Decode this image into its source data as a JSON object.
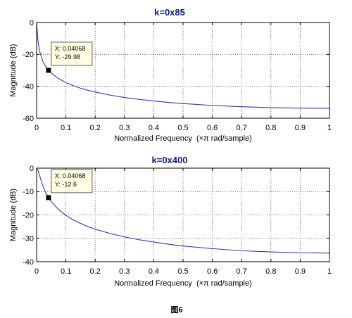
{
  "caption": "图6",
  "chart_data": [
    {
      "type": "line",
      "title": "k=0x85",
      "xlabel": "Normalized Frequency  (×π rad/sample)",
      "ylabel": "Magnitude (dB)",
      "xlim": [
        0,
        1
      ],
      "ylim": [
        -60,
        0
      ],
      "xticks": [
        0,
        0.1,
        0.2,
        0.3,
        0.4,
        0.5,
        0.6,
        0.7,
        0.8,
        0.9,
        1
      ],
      "xtick_labels": [
        "0",
        "0.1",
        "0.2",
        "0.3",
        "0.4",
        "0.5",
        "0.6",
        "0.7",
        "0.8",
        "0.9",
        "1"
      ],
      "yticks": [
        0,
        -20,
        -40,
        -60
      ],
      "ytick_labels": [
        "0",
        "-20",
        "-40",
        "-60"
      ],
      "grid": true,
      "grid_style": "dotted",
      "line_color": "#2b3aa6",
      "title_color": "#14207a",
      "datatip_color": "#ffffe1",
      "series": [
        {
          "x": [
            0,
            0.005,
            0.01,
            0.02,
            0.03,
            0.04068,
            0.05,
            0.075,
            0.1,
            0.125,
            0.15,
            0.175,
            0.2,
            0.25,
            0.3,
            0.35,
            0.4,
            0.45,
            0.5,
            0.6,
            0.7,
            0.8,
            0.9,
            1
          ],
          "y": [
            0,
            -12.0,
            -17.8,
            -23.8,
            -27.3,
            -29.98,
            -31.7,
            -35.2,
            -37.7,
            -39.6,
            -41.2,
            -42.5,
            -43.6,
            -45.5,
            -47.0,
            -48.2,
            -49.2,
            -50.1,
            -50.8,
            -52.0,
            -52.8,
            -53.4,
            -53.7,
            -53.8
          ]
        }
      ],
      "datatip": {
        "x": 0.04068,
        "y": -29.98,
        "x_text": "X: 0.04068",
        "y_text": "Y: -29.98"
      }
    },
    {
      "type": "line",
      "title": "k=0x400",
      "xlabel": "Normalized Frequency  (×π rad/sample)",
      "ylabel": "Magnitude (dB)",
      "xlim": [
        0,
        1
      ],
      "ylim": [
        -40,
        0
      ],
      "xticks": [
        0,
        0.1,
        0.2,
        0.3,
        0.4,
        0.5,
        0.6,
        0.7,
        0.8,
        0.9,
        1
      ],
      "xtick_labels": [
        "0",
        "0.1",
        "0.2",
        "0.3",
        "0.4",
        "0.5",
        "0.6",
        "0.7",
        "0.8",
        "0.9",
        "1"
      ],
      "yticks": [
        0,
        -10,
        -20,
        -30,
        -40
      ],
      "ytick_labels": [
        "0",
        "-10",
        "-20",
        "-30",
        "-40"
      ],
      "grid": true,
      "grid_style": "dotted",
      "line_color": "#2b3aa6",
      "title_color": "#14207a",
      "datatip_color": "#ffffe1",
      "series": [
        {
          "x": [
            0,
            0.005,
            0.01,
            0.02,
            0.03,
            0.04068,
            0.05,
            0.075,
            0.1,
            0.125,
            0.15,
            0.175,
            0.2,
            0.25,
            0.3,
            0.35,
            0.4,
            0.45,
            0.5,
            0.6,
            0.7,
            0.8,
            0.9,
            1
          ],
          "y": [
            0,
            -1.0,
            -3.1,
            -7.1,
            -10.2,
            -12.6,
            -14.3,
            -17.7,
            -20.2,
            -22.1,
            -23.6,
            -25.0,
            -26.1,
            -27.9,
            -29.4,
            -30.6,
            -31.6,
            -32.5,
            -33.3,
            -34.4,
            -35.3,
            -35.8,
            -36.2,
            -36.3
          ]
        }
      ],
      "datatip": {
        "x": 0.04068,
        "y": -12.6,
        "x_text": "X: 0.04068",
        "y_text": "Y: -12.6"
      }
    }
  ]
}
